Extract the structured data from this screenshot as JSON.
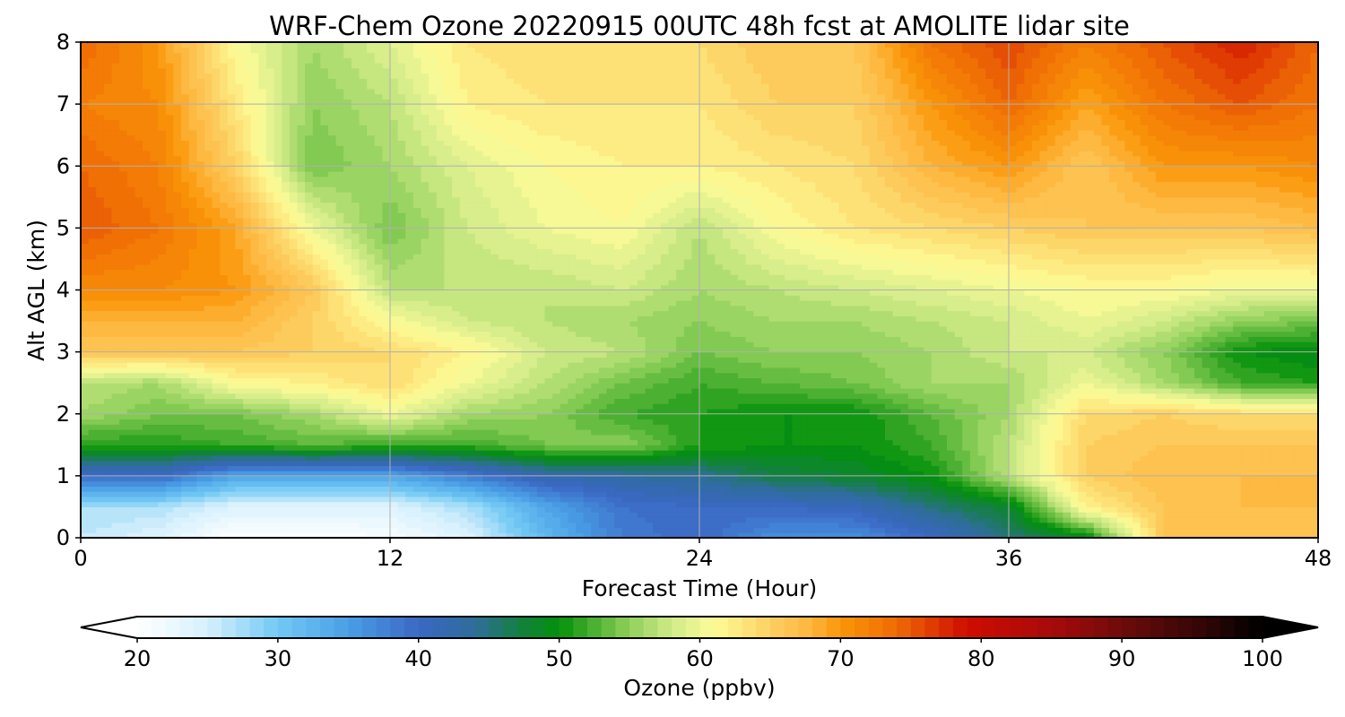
{
  "chart_data": {
    "type": "heatmap",
    "title": "WRF-Chem Ozone  20220915 00UTC 48h fcst at AMOLITE lidar site",
    "xlabel": "Forecast Time (Hour)",
    "ylabel": "Alt AGL (km)",
    "xlim": [
      0,
      48
    ],
    "ylim": [
      0,
      8
    ],
    "xticks": [
      0,
      12,
      24,
      36,
      48
    ],
    "xtick_labels": [
      "0",
      "12",
      "24",
      "36",
      "48"
    ],
    "yticks": [
      0,
      1,
      2,
      3,
      4,
      5,
      6,
      7,
      8
    ],
    "ytick_labels": [
      "0",
      "1",
      "2",
      "3",
      "4",
      "5",
      "6",
      "7",
      "8"
    ],
    "grid": true,
    "x": [
      0,
      3,
      6,
      9,
      12,
      15,
      18,
      21,
      24,
      27,
      30,
      33,
      36,
      39,
      42,
      45,
      48
    ],
    "y": [
      0,
      0.5,
      1,
      1.5,
      2,
      2.5,
      3,
      3.5,
      4,
      5,
      6,
      7,
      8
    ],
    "z": [
      [
        26,
        24,
        20,
        20,
        21,
        24,
        32,
        38,
        40,
        36,
        36,
        40,
        45,
        49,
        66,
        67,
        66
      ],
      [
        27,
        27,
        24,
        24,
        24,
        27,
        34,
        39,
        40,
        40,
        41,
        45,
        48,
        62,
        66,
        67,
        67
      ],
      [
        40,
        40,
        34,
        34,
        34,
        38,
        42,
        43,
        44,
        47,
        48,
        50,
        57,
        65,
        67,
        67,
        67
      ],
      [
        51,
        51,
        52,
        53,
        52,
        52,
        54,
        55,
        51,
        50,
        50,
        52,
        57,
        65,
        66,
        66,
        66
      ],
      [
        56,
        54,
        54,
        56,
        60,
        56,
        55,
        52,
        51,
        50,
        50,
        53,
        56,
        64,
        65,
        64,
        64
      ],
      [
        57,
        56,
        61,
        62,
        64,
        60,
        57,
        54,
        52,
        53,
        54,
        56,
        56,
        60,
        56,
        52,
        51
      ],
      [
        66,
        66,
        66,
        65,
        64,
        62,
        58,
        57,
        54,
        55,
        55,
        56,
        58,
        58,
        55,
        50,
        49
      ],
      [
        68,
        68,
        68,
        65,
        61,
        58,
        57,
        56,
        55,
        56,
        56,
        57,
        58,
        60,
        58,
        55,
        54
      ],
      [
        71,
        71,
        70,
        66,
        57,
        57,
        57,
        58,
        56,
        57,
        58,
        59,
        60,
        61,
        61,
        60,
        60
      ],
      [
        75,
        73,
        69,
        60,
        54,
        58,
        60,
        61,
        57,
        61,
        63,
        64,
        65,
        66,
        66,
        66,
        67
      ],
      [
        74,
        72,
        65,
        54,
        56,
        59,
        61,
        62,
        62,
        63,
        64,
        68,
        70,
        66,
        70,
        70,
        71
      ],
      [
        72,
        71,
        63,
        55,
        57,
        62,
        63,
        63,
        63,
        65,
        65,
        70,
        74,
        69,
        73,
        75,
        73
      ],
      [
        74,
        70,
        61,
        56,
        59,
        63,
        64,
        63,
        64,
        66,
        66,
        73,
        76,
        72,
        75,
        78,
        74
      ]
    ]
  },
  "colorbar": {
    "label": "Ozone  (ppbv)",
    "min": 20,
    "max": 100,
    "step": 1,
    "extend": "both",
    "ticks": [
      20,
      30,
      40,
      50,
      60,
      70,
      80,
      90,
      100
    ],
    "tick_labels": [
      "20",
      "30",
      "40",
      "50",
      "60",
      "70",
      "80",
      "90",
      "100"
    ],
    "stops": [
      {
        "value": 20,
        "color": "#ffffff"
      },
      {
        "value": 25,
        "color": "#d6f0fd"
      },
      {
        "value": 30,
        "color": "#72c9f4"
      },
      {
        "value": 35,
        "color": "#4a9fe6"
      },
      {
        "value": 40,
        "color": "#3a67c4"
      },
      {
        "value": 44,
        "color": "#2f6d9a"
      },
      {
        "value": 47,
        "color": "#157f45"
      },
      {
        "value": 50,
        "color": "#02900a"
      },
      {
        "value": 52,
        "color": "#3faa2a"
      },
      {
        "value": 55,
        "color": "#8fd05a"
      },
      {
        "value": 58,
        "color": "#d1ea88"
      },
      {
        "value": 61,
        "color": "#fdfc98"
      },
      {
        "value": 65,
        "color": "#fdd063"
      },
      {
        "value": 68,
        "color": "#fdb43a"
      },
      {
        "value": 70,
        "color": "#fb9608"
      },
      {
        "value": 74,
        "color": "#ee6a05"
      },
      {
        "value": 79,
        "color": "#cf0c00"
      },
      {
        "value": 85,
        "color": "#a80a0b"
      },
      {
        "value": 90,
        "color": "#6d0b0b"
      },
      {
        "value": 95,
        "color": "#3a0707"
      },
      {
        "value": 100,
        "color": "#000000"
      }
    ]
  },
  "colors": {
    "grid": "#b0b0b0",
    "frame": "#000000",
    "under": "#ffffff",
    "over": "#000000"
  }
}
